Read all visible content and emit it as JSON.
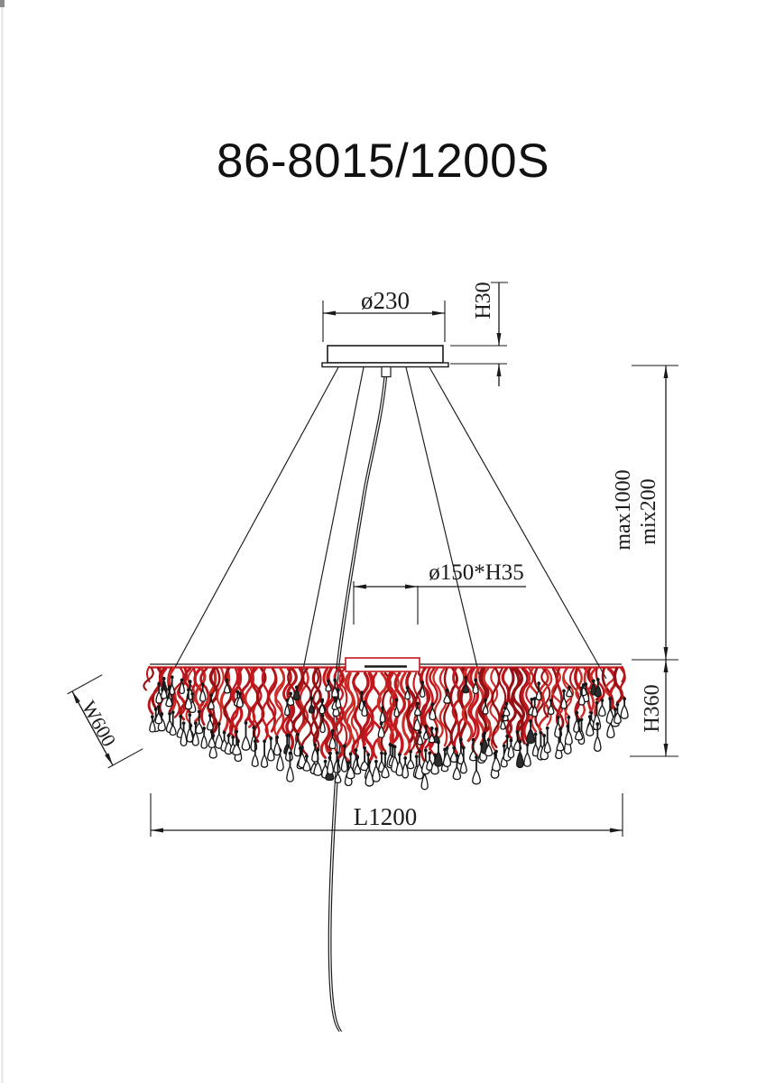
{
  "title": "86-8015/1200S",
  "labels": {
    "canopy_diameter": "ø230",
    "canopy_height": "H30",
    "drop_max": "max1000",
    "drop_min": "mix200",
    "hub_size": "ø150*H35",
    "body_height": "H360",
    "body_width": "W600",
    "body_length": "L1200"
  },
  "colors": {
    "ink": "#1a1a1a",
    "wire_red": "#c2181e",
    "background": "#ffffff"
  }
}
